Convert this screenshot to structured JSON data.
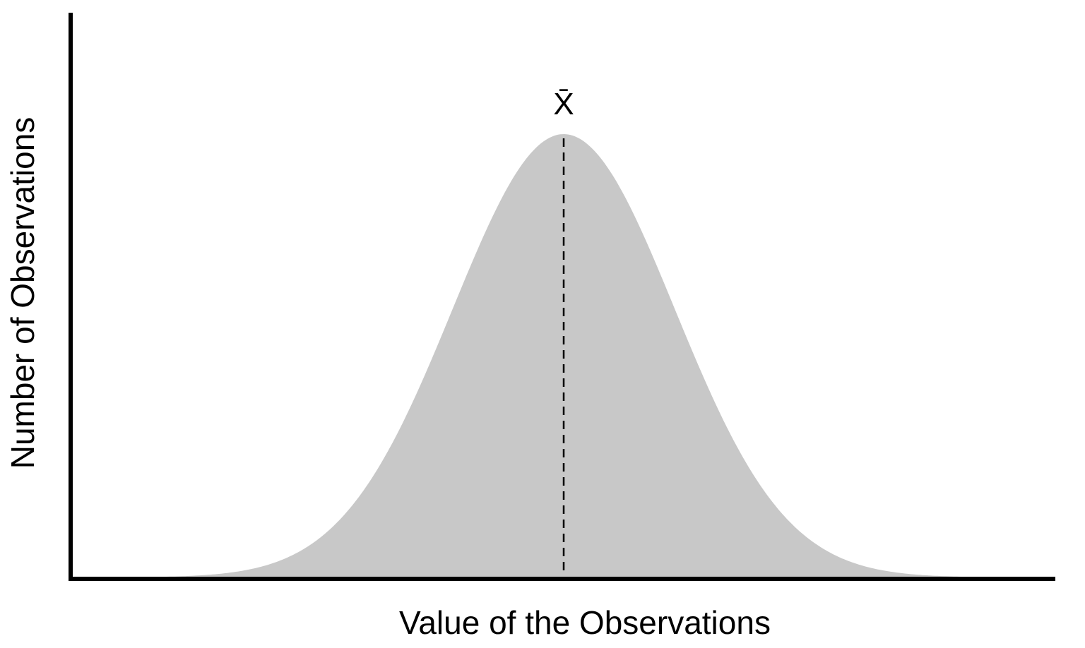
{
  "axes": {
    "x_label": "Value of the Observations",
    "y_label": "Number of Observations"
  },
  "annotation": "X̄"
}
